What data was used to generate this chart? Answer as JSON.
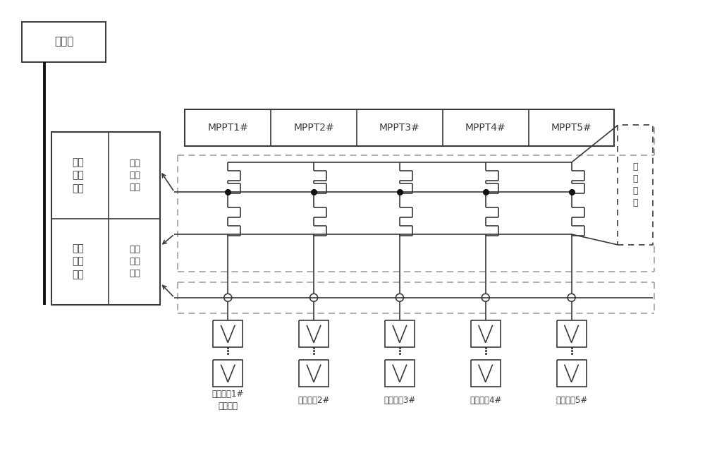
{
  "bg": "#ffffff",
  "lc": "#3a3a3a",
  "dc": "#999999",
  "cloud_label": "云平台",
  "central_label": "中央\n处理\n模块",
  "switch_ctrl_label": "开关\n控制\n模块",
  "data_label": "数据\n传输\n模块",
  "current_label": "电流\n采集\n模块",
  "switch_module_label": "开\n关\n模\n块",
  "mppt_labels": [
    "MPPT1#",
    "MPPT2#",
    "MPPT3#",
    "MPPT4#",
    "MPPT5#"
  ],
  "pv_labels": [
    "光伏组串1#\n（模块）",
    "光伏组串2#",
    "光伏组串3#",
    "光伏组串4#",
    "光伏组串5#"
  ],
  "figsize": [
    10.0,
    6.42
  ],
  "dpi": 100,
  "xlim": [
    0,
    10
  ],
  "ylim": [
    0,
    6.42
  ]
}
